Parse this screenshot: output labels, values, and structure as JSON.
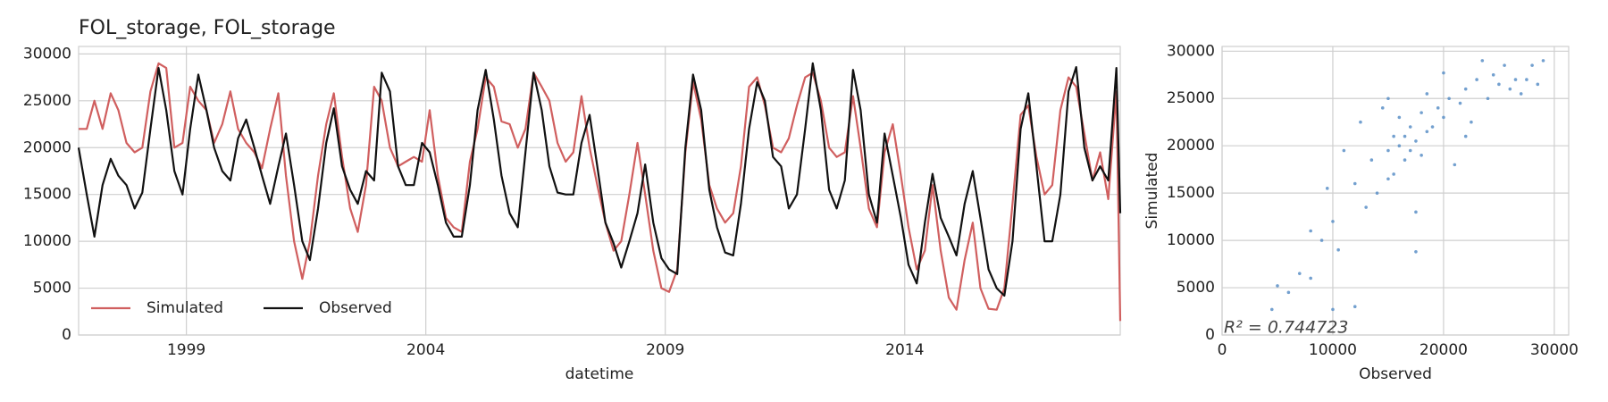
{
  "chart_data": [
    {
      "type": "line",
      "title": "FOL_storage, FOL_storage",
      "xlabel": "datetime",
      "x": [
        1996.75,
        1996.92,
        1997.08,
        1997.25,
        1997.42,
        1997.58,
        1997.75,
        1997.92,
        1998.08,
        1998.25,
        1998.42,
        1998.58,
        1998.75,
        1998.92,
        1999.08,
        1999.25,
        1999.42,
        1999.58,
        1999.75,
        1999.92,
        2000.08,
        2000.25,
        2000.42,
        2000.58,
        2000.75,
        2000.92,
        2001.08,
        2001.25,
        2001.42,
        2001.58,
        2001.75,
        2001.92,
        2002.08,
        2002.25,
        2002.42,
        2002.58,
        2002.75,
        2002.92,
        2003.08,
        2003.25,
        2003.42,
        2003.58,
        2003.75,
        2003.92,
        2004.08,
        2004.25,
        2004.42,
        2004.58,
        2004.75,
        2004.92,
        2005.08,
        2005.25,
        2005.42,
        2005.58,
        2005.75,
        2005.92,
        2006.08,
        2006.25,
        2006.42,
        2006.58,
        2006.75,
        2006.92,
        2007.08,
        2007.25,
        2007.42,
        2007.58,
        2007.75,
        2007.92,
        2008.08,
        2008.25,
        2008.42,
        2008.58,
        2008.75,
        2008.92,
        2009.08,
        2009.25,
        2009.42,
        2009.58,
        2009.75,
        2009.92,
        2010.08,
        2010.25,
        2010.42,
        2010.58,
        2010.75,
        2010.92,
        2011.08,
        2011.25,
        2011.42,
        2011.58,
        2011.75,
        2011.92,
        2012.08,
        2012.25,
        2012.42,
        2012.58,
        2012.75,
        2012.92,
        2013.08,
        2013.25,
        2013.42,
        2013.58,
        2013.75,
        2013.92,
        2014.08,
        2014.25,
        2014.42,
        2014.58,
        2014.75,
        2014.92,
        2015.08,
        2015.25,
        2015.42,
        2015.58,
        2015.75,
        2015.92,
        2016.08,
        2016.25,
        2016.42,
        2016.58,
        2016.75,
        2016.92,
        2017.08,
        2017.25,
        2017.42,
        2017.58,
        2017.75,
        2017.92,
        2018.08,
        2018.25,
        2018.42,
        2018.5
      ],
      "series": [
        {
          "name": "Simulated",
          "color": "#d05f5f",
          "values": [
            22000,
            22000,
            25000,
            22000,
            25800,
            24000,
            20500,
            19500,
            20000,
            26000,
            29000,
            28500,
            20000,
            20500,
            26500,
            25000,
            24000,
            20500,
            22500,
            26000,
            22000,
            20500,
            19500,
            17800,
            22000,
            25800,
            17000,
            10000,
            6000,
            10000,
            17000,
            22500,
            25800,
            19000,
            13500,
            11000,
            16000,
            26500,
            25000,
            20000,
            18000,
            18500,
            19000,
            18500,
            24000,
            17000,
            12500,
            11500,
            11000,
            18500,
            22000,
            27500,
            26500,
            22800,
            22500,
            20000,
            22000,
            28000,
            26500,
            25000,
            20500,
            18500,
            19500,
            25500,
            20000,
            16000,
            12000,
            9000,
            10000,
            15000,
            20500,
            15000,
            9000,
            5000,
            4600,
            7000,
            19500,
            27000,
            23000,
            16000,
            13500,
            12000,
            13000,
            18000,
            26500,
            27500,
            24500,
            20000,
            19500,
            21000,
            24500,
            27500,
            28000,
            25000,
            20000,
            19000,
            19500,
            25500,
            20000,
            13500,
            11500,
            19500,
            22500,
            17000,
            11500,
            7000,
            9000,
            16000,
            9000,
            4000,
            2700,
            8000,
            12000,
            5000,
            2800,
            2700,
            5000,
            14000,
            23500,
            24500,
            19000,
            15000,
            16000,
            24000,
            27500,
            26500,
            21500,
            16500,
            19500,
            14500,
            26000,
            1500
          ]
        },
        {
          "name": "Observed",
          "color": "#111111",
          "values": [
            20000,
            15000,
            10500,
            16000,
            18800,
            17000,
            16000,
            13500,
            15200,
            22000,
            28500,
            24000,
            17500,
            15000,
            22000,
            27800,
            24000,
            20000,
            17500,
            16500,
            21000,
            23000,
            20000,
            17000,
            14000,
            18000,
            21500,
            16000,
            10000,
            8000,
            13500,
            20500,
            24200,
            18000,
            15500,
            14000,
            17500,
            16500,
            28000,
            26000,
            18000,
            16000,
            16000,
            20500,
            19500,
            16000,
            12000,
            10500,
            10500,
            16000,
            24000,
            28300,
            23000,
            17000,
            13000,
            11500,
            19500,
            28000,
            24000,
            18000,
            15200,
            15000,
            15000,
            20500,
            23500,
            18000,
            12000,
            9800,
            7200,
            10000,
            13000,
            18200,
            12000,
            8200,
            7000,
            6500,
            20000,
            27800,
            24000,
            15500,
            11500,
            8800,
            8500,
            14000,
            22000,
            27000,
            25000,
            19000,
            18000,
            13500,
            15000,
            22000,
            29000,
            24000,
            15500,
            13500,
            16500,
            28300,
            24000,
            15000,
            12000,
            21500,
            17000,
            12500,
            7500,
            5500,
            12000,
            17200,
            12500,
            10500,
            8500,
            14000,
            17500,
            12500,
            7000,
            5000,
            4200,
            10000,
            22000,
            25800,
            18000,
            10000,
            10000,
            15000,
            26000,
            28600,
            20000,
            16500,
            18000,
            16500,
            28500,
            13000
          ]
        }
      ],
      "xlim": [
        1996.75,
        2018.5
      ],
      "xticks": [
        1999,
        2004,
        2009,
        2014
      ],
      "ylim": [
        0,
        30800
      ],
      "yticks": [
        0,
        5000,
        10000,
        15000,
        20000,
        25000,
        30000
      ],
      "grid": true,
      "legend": "lower left"
    },
    {
      "type": "scatter",
      "xlabel": "Observed",
      "ylabel": "Simulated",
      "annotation": "R² = 0.744723",
      "color": "#5b8fc7",
      "x": [
        4500,
        5000,
        6000,
        7000,
        8000,
        9000,
        9500,
        10000,
        10000,
        10500,
        11000,
        12000,
        12500,
        13000,
        13500,
        14000,
        14500,
        15000,
        15000,
        15500,
        15500,
        16000,
        16000,
        16500,
        16500,
        17000,
        17000,
        17500,
        17500,
        18000,
        18000,
        18500,
        18500,
        19000,
        19500,
        20000,
        20000,
        20500,
        21000,
        21500,
        22000,
        22500,
        23000,
        23500,
        24000,
        24500,
        25000,
        25500,
        26000,
        26500,
        27000,
        27500,
        28000,
        28500,
        29000,
        17500,
        15000,
        12000,
        22000,
        8000
      ],
      "values": [
        2700,
        5200,
        4500,
        6500,
        11000,
        10000,
        15500,
        2700,
        12000,
        9000,
        19500,
        16000,
        22500,
        13500,
        18500,
        15000,
        24000,
        19500,
        25000,
        21000,
        17000,
        20000,
        23000,
        18500,
        21000,
        19500,
        22000,
        8800,
        20500,
        23500,
        19000,
        25500,
        21500,
        22000,
        24000,
        27700,
        23000,
        25000,
        18000,
        24500,
        26000,
        22500,
        27000,
        29000,
        25000,
        27500,
        26500,
        28500,
        26000,
        27000,
        25500,
        27000,
        28500,
        26500,
        29000,
        13000,
        16500,
        3000,
        21000,
        6000
      ],
      "xlim": [
        0,
        31300
      ],
      "xticks": [
        0,
        10000,
        20000,
        30000
      ],
      "ylim": [
        0,
        30500
      ],
      "yticks": [
        0,
        5000,
        10000,
        15000,
        20000,
        25000,
        30000
      ],
      "grid": true
    }
  ]
}
